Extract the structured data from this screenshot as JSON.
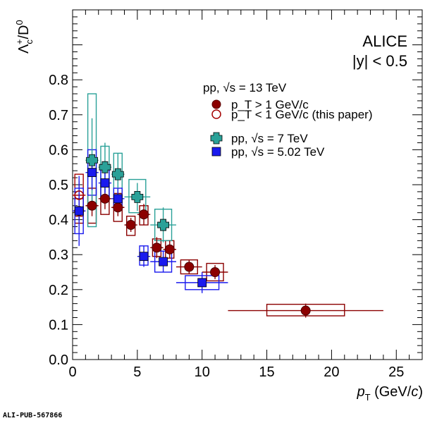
{
  "chart_data": {
    "type": "scatter",
    "title": "",
    "xlabel": "p_T (GeV/c)",
    "ylabel": "Λc+/D0",
    "xlim": [
      0,
      27
    ],
    "ylim": [
      0,
      1.0
    ],
    "x_ticks": [
      "0",
      "5",
      "10",
      "15",
      "20",
      "25"
    ],
    "y_ticks": [
      "0.0",
      "0.1",
      "0.2",
      "0.3",
      "0.4",
      "0.5",
      "0.6",
      "0.7",
      "0.8"
    ],
    "annotations": {
      "experiment": "ALICE",
      "rapidity": "|y| < 0.5"
    },
    "legend": {
      "group_header": "pp, √s = 13 TeV",
      "entries": [
        {
          "label": "p_T > 1 GeV/c",
          "marker": "filled-circle",
          "color": "#8b0000"
        },
        {
          "label": "p_T < 1 GeV/c (this paper)",
          "marker": "open-circle",
          "color": "#a50000"
        },
        {
          "label": "pp, √s = 7 TeV",
          "marker": "cross",
          "color": "#2aa198"
        },
        {
          "label": "pp, √s = 5.02 TeV",
          "marker": "filled-square",
          "color": "#1a1aee"
        }
      ]
    },
    "series": [
      {
        "name": "pp 13 TeV, pT < 1 GeV/c",
        "color": "#a50000",
        "marker": "open-circle",
        "points": [
          {
            "x": 0.5,
            "xlo": 0.0,
            "xhi": 1.0,
            "y": 0.47,
            "stat": 0.04,
            "sys_lo": 0.41,
            "sys_hi": 0.53
          }
        ]
      },
      {
        "name": "pp 13 TeV, pT > 1 GeV/c",
        "color": "#8b0000",
        "marker": "filled-circle",
        "points": [
          {
            "x": 0.5,
            "xlo": 0.0,
            "xhi": 1.0,
            "y": 0.425,
            "stat": 0.03,
            "sys_lo": 0.39,
            "sys_hi": 0.46
          },
          {
            "x": 1.5,
            "xlo": 1.0,
            "xhi": 2.0,
            "y": 0.44,
            "stat": 0.03,
            "sys_lo": 0.39,
            "sys_hi": 0.49
          },
          {
            "x": 2.5,
            "xlo": 2.0,
            "xhi": 3.0,
            "y": 0.46,
            "stat": 0.03,
            "sys_lo": 0.415,
            "sys_hi": 0.505
          },
          {
            "x": 3.5,
            "xlo": 3.0,
            "xhi": 4.0,
            "y": 0.435,
            "stat": 0.025,
            "sys_lo": 0.395,
            "sys_hi": 0.475
          },
          {
            "x": 4.5,
            "xlo": 4.0,
            "xhi": 5.0,
            "y": 0.385,
            "stat": 0.02,
            "sys_lo": 0.355,
            "sys_hi": 0.41
          },
          {
            "x": 5.5,
            "xlo": 5.0,
            "xhi": 6.0,
            "y": 0.415,
            "stat": 0.03,
            "sys_lo": 0.385,
            "sys_hi": 0.44
          },
          {
            "x": 6.5,
            "xlo": 6.0,
            "xhi": 7.0,
            "y": 0.32,
            "stat": 0.03,
            "sys_lo": 0.295,
            "sys_hi": 0.345
          },
          {
            "x": 7.5,
            "xlo": 7.0,
            "xhi": 8.0,
            "y": 0.315,
            "stat": 0.025,
            "sys_lo": 0.29,
            "sys_hi": 0.34
          },
          {
            "x": 9.0,
            "xlo": 8.0,
            "xhi": 10.0,
            "y": 0.265,
            "stat": 0.02,
            "sys_lo": 0.245,
            "sys_hi": 0.285
          },
          {
            "x": 11.0,
            "xlo": 10.0,
            "xhi": 12.0,
            "y": 0.25,
            "stat": 0.02,
            "sys_lo": 0.225,
            "sys_hi": 0.275
          },
          {
            "x": 18.0,
            "xlo": 12.0,
            "xhi": 24.0,
            "y": 0.14,
            "stat": 0.02,
            "sys_lo": 0.125,
            "sys_hi": 0.158,
            "sys_xlo": 15.0,
            "sys_xhi": 21.0
          }
        ]
      },
      {
        "name": "pp 7 TeV",
        "color": "#2aa198",
        "marker": "cross",
        "points": [
          {
            "x": 1.5,
            "xlo": 1.0,
            "xhi": 2.0,
            "y": 0.57,
            "stat": 0.12,
            "sys_lo": 0.38,
            "sys_hi": 0.76
          },
          {
            "x": 2.5,
            "xlo": 2.0,
            "xhi": 3.0,
            "y": 0.55,
            "stat": 0.07,
            "sys_lo": 0.46,
            "sys_hi": 0.61
          },
          {
            "x": 3.5,
            "xlo": 3.0,
            "xhi": 4.0,
            "y": 0.53,
            "stat": 0.06,
            "sys_lo": 0.47,
            "sys_hi": 0.59
          },
          {
            "x": 5.0,
            "xlo": 4.0,
            "xhi": 6.0,
            "y": 0.465,
            "stat": 0.04,
            "sys_lo": 0.42,
            "sys_hi": 0.515
          },
          {
            "x": 7.0,
            "xlo": 6.0,
            "xhi": 8.0,
            "y": 0.385,
            "stat": 0.05,
            "sys_lo": 0.34,
            "sys_hi": 0.43
          }
        ]
      },
      {
        "name": "pp 5.02 TeV",
        "color": "#1a1aee",
        "marker": "filled-square",
        "points": [
          {
            "x": 0.5,
            "xlo": 0.0,
            "xhi": 1.0,
            "y": 0.425,
            "stat": 0.1,
            "sys_lo": 0.36,
            "sys_hi": 0.49
          },
          {
            "x": 1.5,
            "xlo": 1.0,
            "xhi": 2.0,
            "y": 0.535,
            "stat": 0.05,
            "sys_lo": 0.47,
            "sys_hi": 0.6
          },
          {
            "x": 2.5,
            "xlo": 2.0,
            "xhi": 3.0,
            "y": 0.505,
            "stat": 0.03,
            "sys_lo": 0.465,
            "sys_hi": 0.545
          },
          {
            "x": 3.5,
            "xlo": 3.0,
            "xhi": 4.0,
            "y": 0.46,
            "stat": 0.03,
            "sys_lo": 0.43,
            "sys_hi": 0.49
          },
          {
            "x": 5.5,
            "xlo": 5.0,
            "xhi": 6.0,
            "y": 0.295,
            "stat": 0.03,
            "sys_lo": 0.27,
            "sys_hi": 0.325
          },
          {
            "x": 7.0,
            "xlo": 6.0,
            "xhi": 8.0,
            "y": 0.28,
            "stat": 0.03,
            "sys_lo": 0.25,
            "sys_hi": 0.31
          },
          {
            "x": 10.0,
            "xlo": 8.0,
            "xhi": 12.0,
            "y": 0.22,
            "stat": 0.03,
            "sys_lo": 0.2,
            "sys_hi": 0.24
          }
        ]
      }
    ]
  },
  "footer": "ALI-PUB-567866"
}
